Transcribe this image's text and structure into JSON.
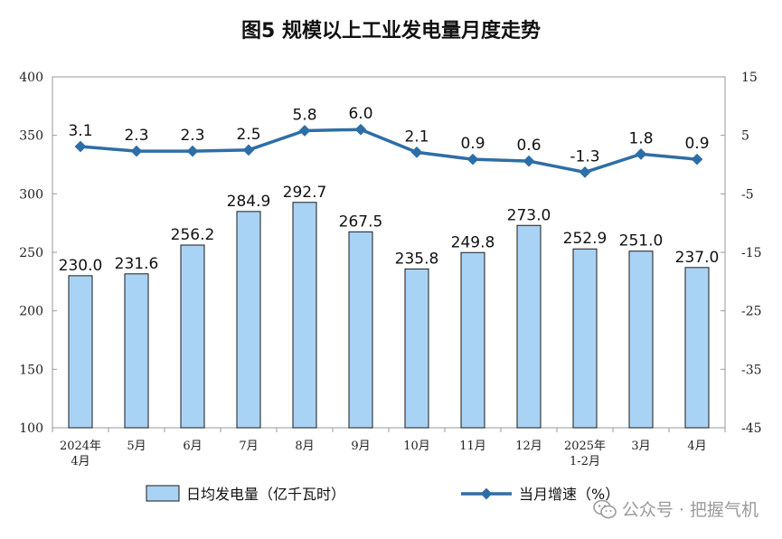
{
  "chart_data": {
    "type": "bar",
    "title": "图5 规模以上工业发电量月度走势",
    "categories": [
      "2024年\n4月",
      "5月",
      "6月",
      "7月",
      "8月",
      "9月",
      "10月",
      "11月",
      "12月",
      "2025年\n1-2月",
      "3月",
      "4月"
    ],
    "series": [
      {
        "name": "日均发电量（亿千瓦时）",
        "type": "bar",
        "axis": "left",
        "color": "#a9d3f5",
        "values": [
          230.0,
          231.6,
          256.2,
          284.9,
          292.7,
          267.5,
          235.8,
          249.8,
          273.0,
          252.9,
          251.0,
          237.0
        ]
      },
      {
        "name": "当月增速（%）",
        "type": "line",
        "axis": "right",
        "color": "#2e6ea6",
        "values": [
          3.1,
          2.3,
          2.3,
          2.5,
          5.8,
          6.0,
          2.1,
          0.9,
          0.6,
          -1.3,
          1.8,
          0.9
        ]
      }
    ],
    "y_left": {
      "ylim": [
        100,
        400
      ],
      "ticks": [
        "100",
        "150",
        "200",
        "250",
        "300",
        "350",
        "400"
      ]
    },
    "y_right": {
      "ylim": [
        -45,
        15
      ],
      "ticks": [
        "-45",
        "-35",
        "-25",
        "-15",
        "-5",
        "5",
        "15"
      ]
    },
    "legend_position": "bottom",
    "grid": false
  },
  "watermark": "公众号 · 把握气机"
}
